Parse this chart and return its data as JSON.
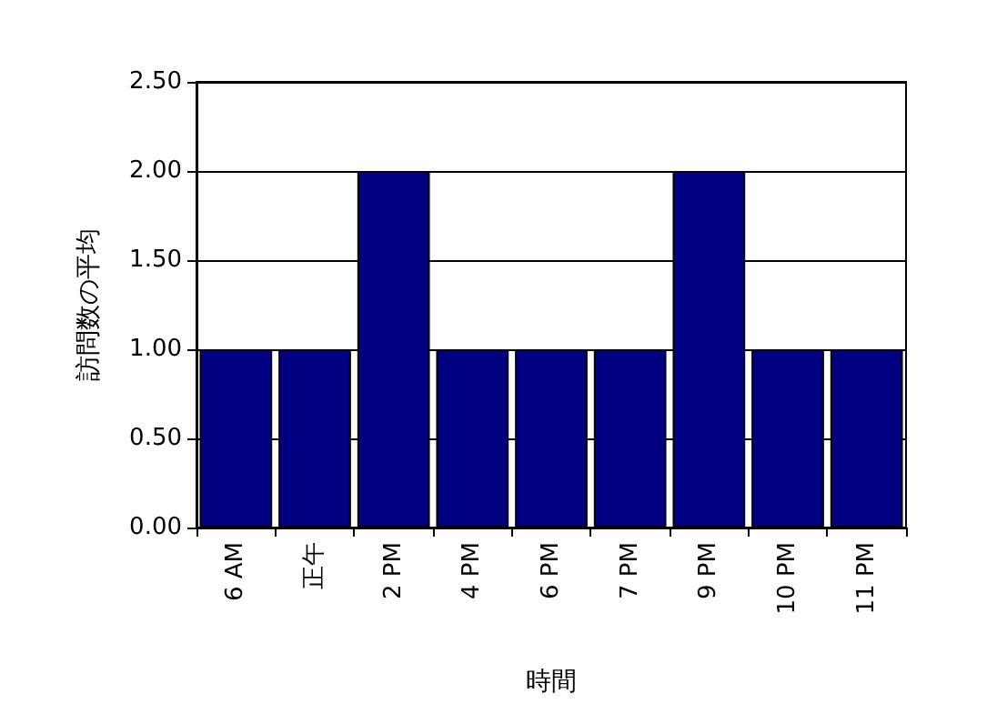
{
  "chart_data": {
    "type": "bar",
    "xlabel": "時間",
    "ylabel": "訪問数の平均",
    "categories": [
      "6 AM",
      "正午",
      "2 PM",
      "4 PM",
      "6 PM",
      "7 PM",
      "9 PM",
      "10 PM",
      "11 PM"
    ],
    "values": [
      1,
      1,
      2,
      1,
      1,
      1,
      2,
      1,
      1
    ],
    "color": "#000080",
    "ylim": [
      0,
      2.5
    ],
    "yticks": [
      {
        "value": 0,
        "label": "0.00"
      },
      {
        "value": 0.5,
        "label": "0.50"
      },
      {
        "value": 1,
        "label": "1.00"
      },
      {
        "value": 1.5,
        "label": "1.50"
      },
      {
        "value": 2,
        "label": "2.00"
      },
      {
        "value": 2.5,
        "label": "2.50"
      }
    ],
    "grid": "y"
  }
}
